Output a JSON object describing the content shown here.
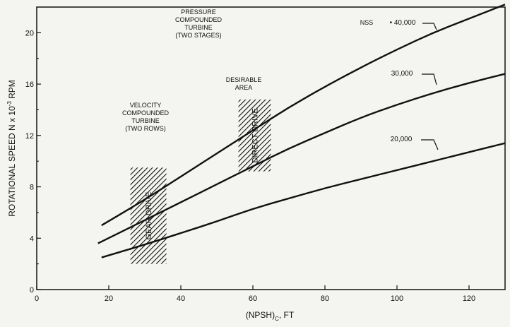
{
  "chart_data": {
    "type": "line",
    "xlabel": "(NPSH)C, FT",
    "xlabel_main": "(NPSH)",
    "xlabel_sub": "C",
    "xlabel_tail": ", FT",
    "ylabel": "ROTATIONAL SPEED N x 10-3 RPM",
    "ylabel_main": "ROTATIONAL SPEED N x 10",
    "ylabel_exp": "-3",
    "ylabel_tail": " RPM",
    "xlim": [
      0,
      130
    ],
    "ylim": [
      0,
      22
    ],
    "xticks": [
      0,
      20,
      40,
      60,
      80,
      100,
      120
    ],
    "yticks": [
      0,
      4,
      8,
      12,
      16,
      20
    ],
    "grid": false,
    "series": [
      {
        "name": "Nss = 40,000",
        "label": "40,000",
        "x": [
          18,
          30,
          40,
          50,
          60,
          70,
          80,
          90,
          100,
          110,
          120,
          130
        ],
        "y": [
          5.0,
          7.0,
          8.8,
          10.6,
          12.4,
          14.2,
          15.8,
          17.3,
          18.7,
          20.0,
          21.1,
          22.2
        ]
      },
      {
        "name": "30,000",
        "label": "30,000",
        "x": [
          17,
          30,
          40,
          50,
          60,
          70,
          80,
          90,
          100,
          110,
          120,
          130
        ],
        "y": [
          3.6,
          5.4,
          6.8,
          8.2,
          9.6,
          11.0,
          12.2,
          13.4,
          14.4,
          15.3,
          16.1,
          16.8
        ]
      },
      {
        "name": "20,000",
        "label": "20,000",
        "x": [
          18,
          30,
          40,
          50,
          60,
          70,
          80,
          90,
          100,
          110,
          120,
          130
        ],
        "y": [
          2.5,
          3.5,
          4.4,
          5.3,
          6.3,
          7.1,
          7.9,
          8.6,
          9.3,
          10.0,
          10.7,
          11.4
        ]
      }
    ],
    "nss_label": "NSS",
    "regions": [
      {
        "name": "gear-drive",
        "text": "GEAR DRIVE",
        "x": [
          26,
          36
        ],
        "y": [
          2.0,
          9.5
        ]
      },
      {
        "name": "direct-drive",
        "text": "DIRECT DRIVE",
        "x": [
          56,
          65
        ],
        "y": [
          9.2,
          14.8
        ]
      }
    ],
    "annotations": {
      "pressure": [
        "PRESSURE",
        "COMPOUNDED",
        "TURBINE",
        "(TWO STAGES)"
      ],
      "velocity": [
        "VELOCITY",
        "COMPOUNDED",
        "TURBINE",
        "(TWO ROWS)"
      ],
      "desirable": [
        "DESIRABLE",
        "AREA"
      ]
    }
  }
}
